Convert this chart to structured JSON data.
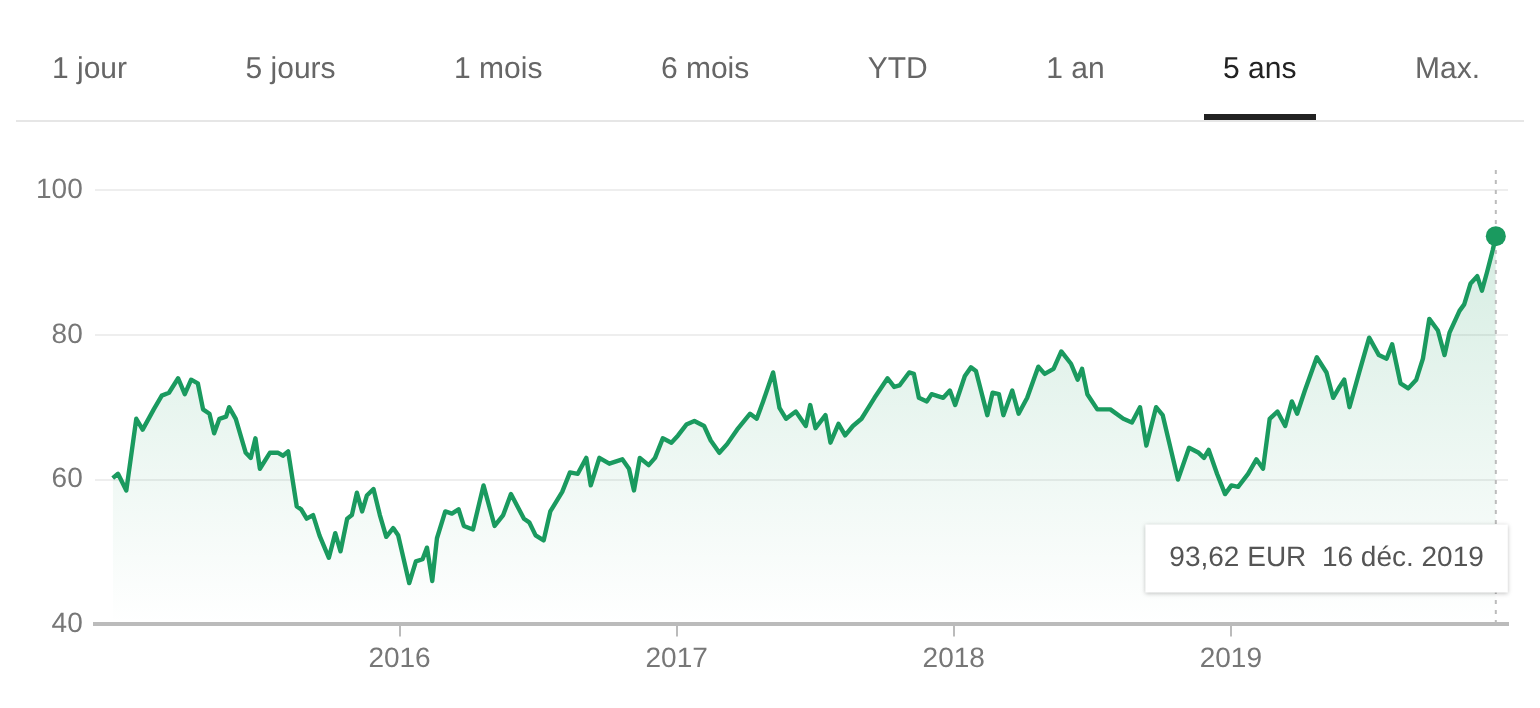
{
  "chart_data": {
    "type": "area",
    "x": [
      2014.965,
      2014.984,
      2015.014,
      2015.05,
      2015.073,
      2015.113,
      2015.142,
      2015.168,
      2015.201,
      2015.225,
      2015.248,
      2015.272,
      2015.291,
      2015.314,
      2015.331,
      2015.35,
      2015.374,
      2015.385,
      2015.409,
      2015.445,
      2015.463,
      2015.48,
      2015.496,
      2015.532,
      2015.562,
      2015.579,
      2015.598,
      2015.629,
      2015.645,
      2015.665,
      2015.688,
      2015.711,
      2015.745,
      2015.768,
      2015.787,
      2015.811,
      2015.828,
      2015.846,
      2015.865,
      2015.882,
      2015.906,
      2015.929,
      2015.952,
      2015.977,
      2015.995,
      2016.035,
      2016.059,
      2016.083,
      2016.099,
      2016.118,
      2016.135,
      2016.165,
      2016.189,
      2016.213,
      2016.232,
      2016.265,
      2016.303,
      2016.343,
      2016.374,
      2016.402,
      2016.449,
      2016.468,
      2016.491,
      2016.52,
      2016.544,
      2016.587,
      2016.615,
      2016.643,
      2016.674,
      2016.69,
      2016.721,
      2016.757,
      2016.804,
      2016.828,
      2016.846,
      2016.867,
      2016.899,
      2016.922,
      2016.95,
      2016.981,
      2017.005,
      2017.035,
      2017.064,
      2017.099,
      2017.123,
      2017.154,
      2017.182,
      2017.218,
      2017.265,
      2017.289,
      2017.312,
      2017.348,
      2017.371,
      2017.395,
      2017.43,
      2017.466,
      2017.482,
      2017.501,
      2017.537,
      2017.555,
      2017.584,
      2017.608,
      2017.636,
      2017.667,
      2017.714,
      2017.761,
      2017.785,
      2017.804,
      2017.839,
      2017.856,
      2017.874,
      2017.903,
      2017.92,
      2017.962,
      2017.986,
      2018.005,
      2018.04,
      2018.062,
      2018.08,
      2018.121,
      2018.14,
      2018.163,
      2018.179,
      2018.211,
      2018.234,
      2018.265,
      2018.305,
      2018.328,
      2018.36,
      2018.388,
      2018.423,
      2018.447,
      2018.463,
      2018.482,
      2018.518,
      2018.565,
      2018.612,
      2018.643,
      2018.672,
      2018.695,
      2018.73,
      2018.754,
      2018.809,
      2018.849,
      2018.884,
      2018.903,
      2018.92,
      2018.95,
      2018.979,
      2019.002,
      2019.026,
      2019.062,
      2019.092,
      2019.116,
      2019.14,
      2019.168,
      2019.196,
      2019.22,
      2019.239,
      2019.267,
      2019.31,
      2019.345,
      2019.369,
      2019.392,
      2019.409,
      2019.428,
      2019.463,
      2019.499,
      2019.534,
      2019.562,
      2019.582,
      2019.612,
      2019.64,
      2019.669,
      2019.693,
      2019.716,
      2019.747,
      2019.771,
      2019.789,
      2019.825,
      2019.842,
      2019.865,
      2019.889,
      2019.906,
      2019.924,
      2019.945,
      2019.956
    ],
    "series": [
      {
        "color": "#1a9a5f",
        "values": [
          60.2,
          60.8,
          58.5,
          68.4,
          66.9,
          69.7,
          71.6,
          72.0,
          74.0,
          71.8,
          73.8,
          73.3,
          69.7,
          69.1,
          66.4,
          68.4,
          68.7,
          70.0,
          68.4,
          63.7,
          63.0,
          65.7,
          61.5,
          63.7,
          63.7,
          63.3,
          63.9,
          56.3,
          55.9,
          54.6,
          55.1,
          52.3,
          49.2,
          52.6,
          50.1,
          54.6,
          55.1,
          58.2,
          55.6,
          57.8,
          58.7,
          55.1,
          52.1,
          53.3,
          52.3,
          45.7,
          48.7,
          49.0,
          50.6,
          46.0,
          51.9,
          55.6,
          55.3,
          55.9,
          53.6,
          53.1,
          59.2,
          53.6,
          55.1,
          58.0,
          54.6,
          54.1,
          52.3,
          51.6,
          55.6,
          58.3,
          61.0,
          60.8,
          63.0,
          59.2,
          63.0,
          62.2,
          62.8,
          61.5,
          58.5,
          63.0,
          62.0,
          63.0,
          65.7,
          65.1,
          66.1,
          67.6,
          68.1,
          67.4,
          65.4,
          63.7,
          64.9,
          66.9,
          69.1,
          68.4,
          70.8,
          74.8,
          69.9,
          68.4,
          69.4,
          67.4,
          70.3,
          67.1,
          68.9,
          65.1,
          67.7,
          66.1,
          67.4,
          68.4,
          71.3,
          74.0,
          72.8,
          73.0,
          74.8,
          74.6,
          71.3,
          70.8,
          71.8,
          71.3,
          72.3,
          70.3,
          74.3,
          75.5,
          75.0,
          68.9,
          72.0,
          71.8,
          68.9,
          72.3,
          69.1,
          71.3,
          75.6,
          74.6,
          75.3,
          77.7,
          76.0,
          73.8,
          75.3,
          71.8,
          69.7,
          69.7,
          68.4,
          67.9,
          70.0,
          64.7,
          70.0,
          68.9,
          60.0,
          64.4,
          63.7,
          63.0,
          64.1,
          60.8,
          58.0,
          59.2,
          59.0,
          60.8,
          62.8,
          61.5,
          68.4,
          69.4,
          67.4,
          70.8,
          69.1,
          72.3,
          76.9,
          74.8,
          71.3,
          72.8,
          73.8,
          70.0,
          74.8,
          79.6,
          77.2,
          76.7,
          78.7,
          73.3,
          72.6,
          73.8,
          76.7,
          82.2,
          80.6,
          77.2,
          80.3,
          83.3,
          84.2,
          87.1,
          88.1,
          86.1,
          88.6,
          91.7,
          93.62
        ]
      }
    ],
    "xlim": [
      2014.9,
      2020.0
    ],
    "xticks": [
      2016,
      2017,
      2018,
      2019
    ],
    "ylim": [
      40,
      100
    ],
    "yticks": [
      40,
      60,
      80,
      100
    ],
    "grid": "y",
    "marker": "none",
    "line_style": "solid",
    "legend": false,
    "annotations": [
      "1 jour",
      "5 jours",
      "1 mois",
      "6 mois",
      "YTD",
      "1 an",
      "5 ans",
      "Max.",
      "93,62 EUR  16 déc. 2019"
    ],
    "ref_lines": [
      {
        "axis": "x",
        "value": 2019.956,
        "color": "#bbbbbb",
        "line_style": "dotted"
      }
    ]
  }
}
